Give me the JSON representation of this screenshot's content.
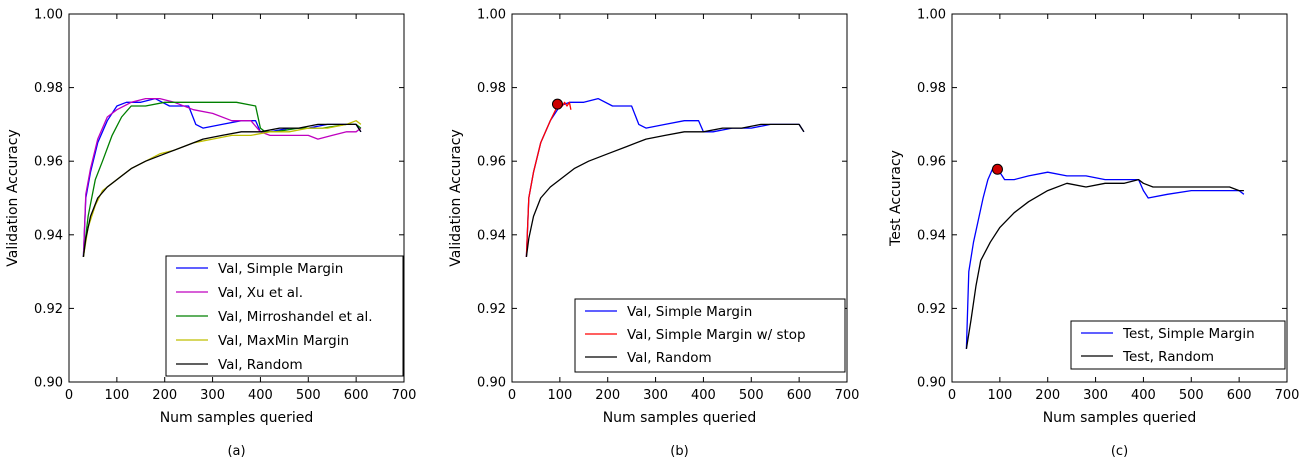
{
  "chart_data": [
    {
      "type": "line",
      "panel_label": "(a)",
      "xlabel": "Num samples queried",
      "ylabel": "Validation Accuracy",
      "xlim": [
        0,
        700
      ],
      "ylim": [
        0.9,
        1.0
      ],
      "xticks": [
        "0",
        "100",
        "200",
        "300",
        "400",
        "500",
        "600",
        "700"
      ],
      "yticks": [
        "0.90",
        "0.92",
        "0.94",
        "0.96",
        "0.98",
        "1.00"
      ],
      "grid": false,
      "legend_position": "bottom-right",
      "series": [
        {
          "name": "Val, Simple Margin",
          "color": "#0000ff",
          "x": [
            30,
            35,
            45,
            60,
            80,
            100,
            120,
            150,
            180,
            210,
            250,
            265,
            280,
            320,
            360,
            390,
            400,
            420,
            460,
            500,
            540,
            580,
            600,
            605,
            610
          ],
          "y": [
            0.934,
            0.95,
            0.957,
            0.965,
            0.971,
            0.975,
            0.976,
            0.976,
            0.977,
            0.975,
            0.975,
            0.97,
            0.969,
            0.97,
            0.971,
            0.971,
            0.968,
            0.968,
            0.969,
            0.969,
            0.97,
            0.97,
            0.97,
            0.969,
            0.968
          ]
        },
        {
          "name": "Val, Xu et al.",
          "color": "#bf00bf",
          "x": [
            30,
            35,
            45,
            60,
            80,
            100,
            130,
            160,
            190,
            220,
            260,
            300,
            340,
            380,
            400,
            420,
            460,
            500,
            520,
            550,
            580,
            600,
            610
          ],
          "y": [
            0.934,
            0.951,
            0.958,
            0.966,
            0.972,
            0.974,
            0.976,
            0.977,
            0.977,
            0.976,
            0.974,
            0.973,
            0.971,
            0.971,
            0.968,
            0.967,
            0.967,
            0.967,
            0.966,
            0.967,
            0.968,
            0.968,
            0.969
          ]
        },
        {
          "name": "Val, Mirroshandel et al.",
          "color": "#008000",
          "x": [
            30,
            40,
            55,
            70,
            90,
            110,
            130,
            160,
            200,
            250,
            300,
            350,
            390,
            395,
            400,
            410,
            430,
            480,
            530,
            580,
            600,
            610
          ],
          "y": [
            0.934,
            0.945,
            0.955,
            0.96,
            0.967,
            0.972,
            0.975,
            0.975,
            0.976,
            0.976,
            0.976,
            0.976,
            0.975,
            0.972,
            0.969,
            0.968,
            0.968,
            0.969,
            0.969,
            0.97,
            0.97,
            0.969
          ]
        },
        {
          "name": "Val, MaxMin Margin",
          "color": "#bfbf00",
          "x": [
            30,
            40,
            55,
            70,
            90,
            110,
            130,
            160,
            190,
            220,
            260,
            300,
            340,
            380,
            420,
            460,
            500,
            540,
            580,
            600,
            610
          ],
          "y": [
            0.934,
            0.942,
            0.948,
            0.952,
            0.954,
            0.956,
            0.958,
            0.96,
            0.962,
            0.963,
            0.965,
            0.966,
            0.967,
            0.967,
            0.968,
            0.968,
            0.969,
            0.969,
            0.97,
            0.971,
            0.97
          ]
        },
        {
          "name": "Val, Random",
          "color": "#000000",
          "x": [
            30,
            35,
            45,
            60,
            80,
            100,
            130,
            160,
            200,
            240,
            280,
            320,
            360,
            400,
            440,
            480,
            520,
            560,
            590,
            600,
            610
          ],
          "y": [
            0.934,
            0.939,
            0.945,
            0.95,
            0.953,
            0.955,
            0.958,
            0.96,
            0.962,
            0.964,
            0.966,
            0.967,
            0.968,
            0.968,
            0.969,
            0.969,
            0.97,
            0.97,
            0.97,
            0.97,
            0.968
          ]
        }
      ],
      "markers": []
    },
    {
      "type": "line",
      "panel_label": "(b)",
      "xlabel": "Num samples queried",
      "ylabel": "Validation Accuracy",
      "xlim": [
        0,
        700
      ],
      "ylim": [
        0.9,
        1.0
      ],
      "xticks": [
        "0",
        "100",
        "200",
        "300",
        "400",
        "500",
        "600",
        "700"
      ],
      "yticks": [
        "0.90",
        "0.92",
        "0.94",
        "0.96",
        "0.98",
        "1.00"
      ],
      "grid": false,
      "legend_position": "bottom-right",
      "series": [
        {
          "name": "Val, Simple Margin",
          "color": "#0000ff",
          "x": [
            30,
            35,
            45,
            60,
            80,
            100,
            120,
            150,
            180,
            210,
            250,
            265,
            280,
            320,
            360,
            390,
            400,
            420,
            460,
            500,
            540,
            580,
            600,
            605,
            610
          ],
          "y": [
            0.934,
            0.95,
            0.957,
            0.965,
            0.971,
            0.975,
            0.976,
            0.976,
            0.977,
            0.975,
            0.975,
            0.97,
            0.969,
            0.97,
            0.971,
            0.971,
            0.968,
            0.968,
            0.969,
            0.969,
            0.97,
            0.97,
            0.97,
            0.969,
            0.968
          ]
        },
        {
          "name": "Val, Simple Margin w/ stop",
          "color": "#ff0000",
          "x": [
            30,
            35,
            45,
            60,
            80,
            95,
            100,
            105,
            110,
            115,
            120,
            123
          ],
          "y": [
            0.934,
            0.95,
            0.957,
            0.965,
            0.971,
            0.975,
            0.976,
            0.975,
            0.976,
            0.975,
            0.976,
            0.974
          ]
        },
        {
          "name": "Val, Random",
          "color": "#000000",
          "x": [
            30,
            35,
            45,
            60,
            80,
            100,
            130,
            160,
            200,
            240,
            280,
            320,
            360,
            400,
            440,
            480,
            520,
            560,
            590,
            600,
            610
          ],
          "y": [
            0.934,
            0.939,
            0.945,
            0.95,
            0.953,
            0.955,
            0.958,
            0.96,
            0.962,
            0.964,
            0.966,
            0.967,
            0.968,
            0.968,
            0.969,
            0.969,
            0.97,
            0.97,
            0.97,
            0.97,
            0.968
          ]
        }
      ],
      "markers": [
        {
          "x": 95,
          "y": 0.9755,
          "color": "#cc0000"
        }
      ]
    },
    {
      "type": "line",
      "panel_label": "(c)",
      "xlabel": "Num samples queried",
      "ylabel": "Test Accuracy",
      "xlim": [
        0,
        700
      ],
      "ylim": [
        0.9,
        1.0
      ],
      "xticks": [
        "0",
        "100",
        "200",
        "300",
        "400",
        "500",
        "600",
        "700"
      ],
      "yticks": [
        "0.90",
        "0.92",
        "0.94",
        "0.96",
        "0.98",
        "1.00"
      ],
      "grid": false,
      "legend_position": "bottom-right",
      "series": [
        {
          "name": "Test, Simple Margin",
          "color": "#0000ff",
          "x": [
            30,
            35,
            45,
            55,
            65,
            75,
            85,
            95,
            110,
            130,
            160,
            200,
            240,
            280,
            320,
            360,
            390,
            400,
            410,
            450,
            500,
            550,
            600,
            610
          ],
          "y": [
            0.909,
            0.93,
            0.938,
            0.944,
            0.95,
            0.955,
            0.958,
            0.958,
            0.955,
            0.955,
            0.956,
            0.957,
            0.956,
            0.956,
            0.955,
            0.955,
            0.955,
            0.952,
            0.95,
            0.951,
            0.952,
            0.952,
            0.952,
            0.951
          ]
        },
        {
          "name": "Test, Random",
          "color": "#000000",
          "x": [
            30,
            40,
            50,
            60,
            80,
            100,
            130,
            160,
            200,
            240,
            280,
            320,
            360,
            390,
            400,
            420,
            460,
            500,
            540,
            580,
            600,
            610
          ],
          "y": [
            0.909,
            0.917,
            0.926,
            0.933,
            0.938,
            0.942,
            0.946,
            0.949,
            0.952,
            0.954,
            0.953,
            0.954,
            0.954,
            0.955,
            0.954,
            0.953,
            0.953,
            0.953,
            0.953,
            0.953,
            0.952,
            0.952
          ]
        }
      ],
      "markers": [
        {
          "x": 95,
          "y": 0.9578,
          "color": "#cc0000"
        }
      ]
    }
  ]
}
